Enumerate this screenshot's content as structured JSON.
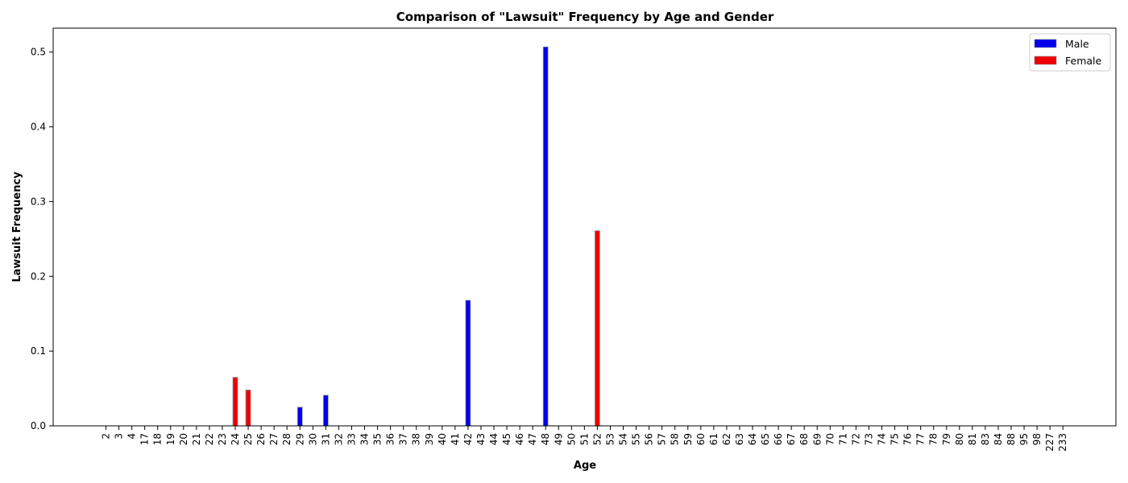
{
  "chart_data": {
    "type": "bar",
    "title": "Comparison of \"Lawsuit\" Frequency by Age and Gender",
    "xlabel": "Age",
    "ylabel": "Lawsuit Frequency",
    "ylim": [
      0,
      0.532
    ],
    "yticks": [
      "0.0",
      "0.1",
      "0.2",
      "0.3",
      "0.4",
      "0.5"
    ],
    "legend_position": "top-right",
    "grid": false,
    "categories": [
      "2",
      "3",
      "4",
      "17",
      "18",
      "19",
      "20",
      "21",
      "22",
      "23",
      "24",
      "25",
      "26",
      "27",
      "28",
      "29",
      "30",
      "31",
      "32",
      "33",
      "34",
      "35",
      "36",
      "37",
      "38",
      "39",
      "40",
      "41",
      "42",
      "43",
      "44",
      "45",
      "46",
      "47",
      "48",
      "49",
      "50",
      "51",
      "52",
      "53",
      "54",
      "55",
      "56",
      "57",
      "58",
      "59",
      "60",
      "61",
      "62",
      "63",
      "64",
      "65",
      "66",
      "67",
      "68",
      "69",
      "70",
      "71",
      "72",
      "73",
      "74",
      "75",
      "76",
      "77",
      "78",
      "79",
      "80",
      "81",
      "83",
      "84",
      "88",
      "95",
      "98",
      "227",
      "233"
    ],
    "series": [
      {
        "name": "Male",
        "color": "#0000ee",
        "values": [
          0,
          0,
          0,
          0,
          0,
          0,
          0,
          0,
          0,
          0,
          0,
          0,
          0,
          0,
          0,
          0.025,
          0,
          0.041,
          0,
          0,
          0,
          0,
          0,
          0,
          0,
          0,
          0,
          0,
          0.168,
          0,
          0,
          0,
          0,
          0,
          0.507,
          0,
          0,
          0,
          0,
          0,
          0,
          0,
          0,
          0,
          0,
          0,
          0,
          0,
          0,
          0,
          0,
          0,
          0,
          0,
          0,
          0,
          0,
          0,
          0,
          0,
          0,
          0,
          0,
          0,
          0,
          0,
          0,
          0,
          0,
          0,
          0,
          0,
          0,
          0,
          0
        ]
      },
      {
        "name": "Female",
        "color": "#ee0000",
        "values": [
          0,
          0,
          0,
          0,
          0,
          0,
          0,
          0,
          0,
          0,
          0.065,
          0.048,
          0,
          0,
          0,
          0,
          0,
          0,
          0,
          0,
          0,
          0,
          0,
          0,
          0,
          0,
          0,
          0,
          0,
          0,
          0,
          0,
          0,
          0,
          0,
          0,
          0,
          0,
          0.261,
          0,
          0,
          0,
          0,
          0,
          0,
          0,
          0,
          0,
          0,
          0,
          0,
          0,
          0,
          0,
          0,
          0,
          0,
          0,
          0,
          0,
          0,
          0,
          0,
          0,
          0,
          0,
          0,
          0,
          0,
          0,
          0,
          0,
          0,
          0,
          0
        ]
      }
    ]
  }
}
